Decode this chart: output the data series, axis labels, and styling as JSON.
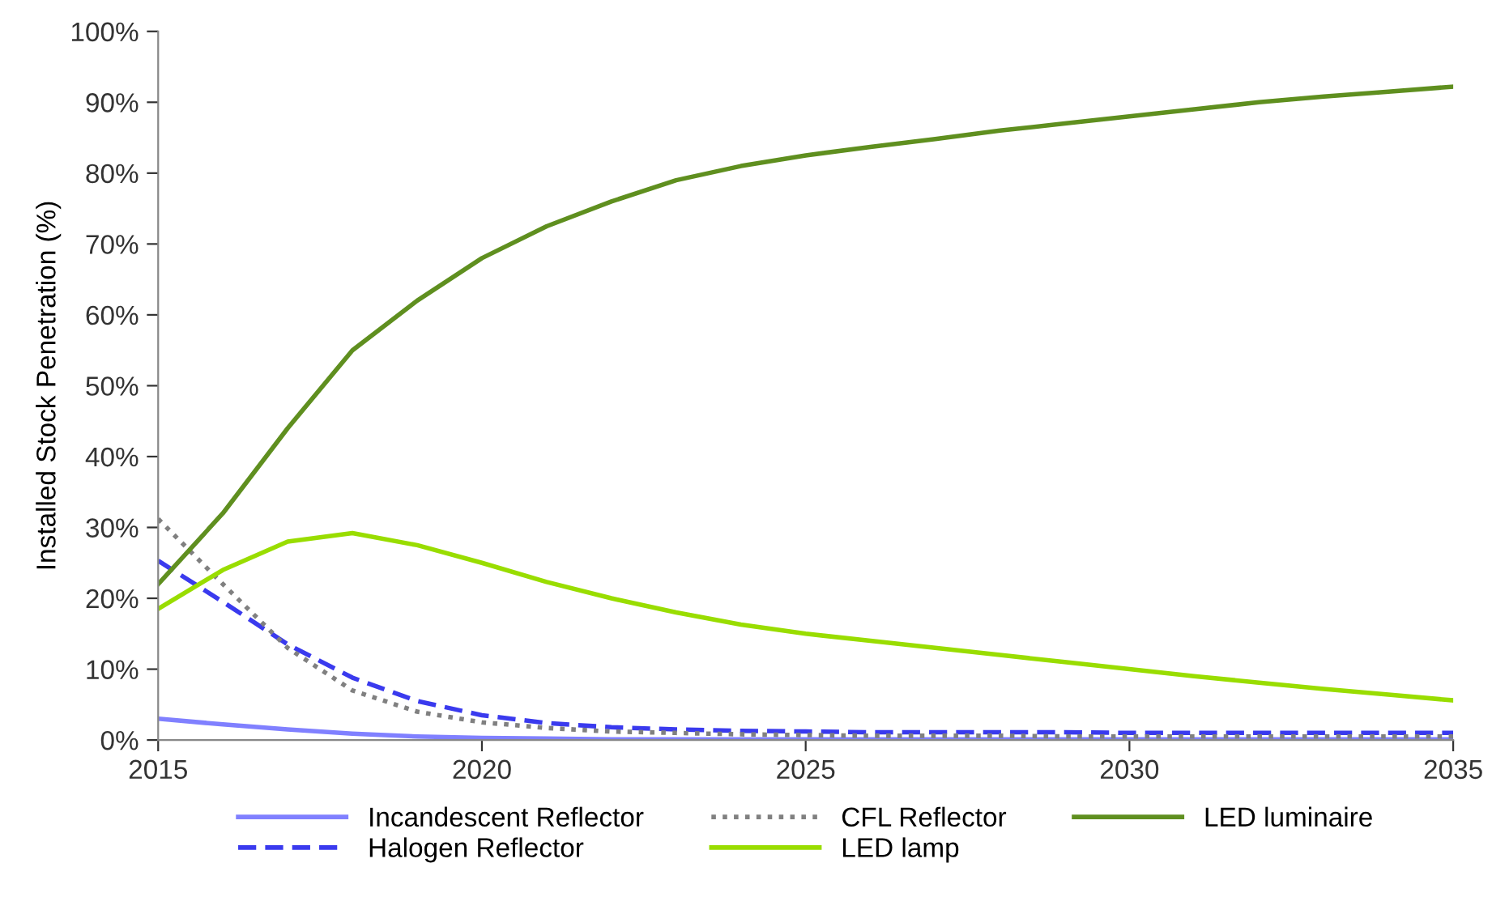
{
  "chart_data": {
    "type": "line",
    "ylabel": "Installed Stock Penetration (%)",
    "x": [
      2015,
      2016,
      2017,
      2018,
      2019,
      2020,
      2021,
      2022,
      2023,
      2024,
      2025,
      2026,
      2027,
      2028,
      2029,
      2030,
      2031,
      2032,
      2033,
      2034,
      2035
    ],
    "series": [
      {
        "name": "Incandescent Reflector",
        "color": "#8080ff",
        "line_style": "solid",
        "values": [
          3.0,
          2.2,
          1.5,
          0.9,
          0.5,
          0.3,
          0.2,
          0.1,
          0.1,
          0.1,
          0.1,
          0.1,
          0.1,
          0.1,
          0.1,
          0.1,
          0.1,
          0.1,
          0.1,
          0.1,
          0.1
        ]
      },
      {
        "name": "Halogen Reflector",
        "color": "#3a3aee",
        "line_style": "dashed",
        "values": [
          25.3,
          19.5,
          13.5,
          8.8,
          5.5,
          3.5,
          2.4,
          1.8,
          1.5,
          1.3,
          1.2,
          1.1,
          1.1,
          1.1,
          1.1,
          1.0,
          1.0,
          1.0,
          1.0,
          1.0,
          1.0
        ]
      },
      {
        "name": "CFL Reflector",
        "color": "#808080",
        "line_style": "dotted",
        "values": [
          31.2,
          22,
          13,
          7,
          4,
          2.5,
          1.7,
          1.2,
          1.0,
          0.8,
          0.7,
          0.6,
          0.6,
          0.6,
          0.5,
          0.5,
          0.5,
          0.5,
          0.5,
          0.5,
          0.5
        ]
      },
      {
        "name": "LED lamp",
        "color": "#99dd00",
        "line_style": "solid",
        "values": [
          18.5,
          24,
          28,
          29.2,
          27.5,
          25,
          22.3,
          20,
          18,
          16.3,
          15,
          14,
          13,
          12,
          11,
          10,
          9,
          8.1,
          7.2,
          6.4,
          5.6
        ]
      },
      {
        "name": "LED luminaire",
        "color": "#5f8f1f",
        "line_style": "solid",
        "values": [
          22,
          32,
          44,
          55,
          62,
          68,
          72.5,
          76,
          79,
          81,
          82.5,
          83.7,
          84.8,
          86,
          87,
          88,
          89,
          90,
          90.8,
          91.5,
          92.2
        ]
      }
    ],
    "xlim": [
      2015,
      2035
    ],
    "xticks": [
      2015,
      2020,
      2025,
      2030,
      2035
    ],
    "ylim": [
      0,
      100
    ],
    "yticks": [
      {
        "value": 0,
        "label": "0%"
      },
      {
        "value": 10,
        "label": "10%"
      },
      {
        "value": 20,
        "label": "20%"
      },
      {
        "value": 30,
        "label": "30%"
      },
      {
        "value": 40,
        "label": "40%"
      },
      {
        "value": 50,
        "label": "50%"
      },
      {
        "value": 60,
        "label": "60%"
      },
      {
        "value": 70,
        "label": "70%"
      },
      {
        "value": 80,
        "label": "80%"
      },
      {
        "value": 90,
        "label": "90%"
      },
      {
        "value": 100,
        "label": "100%"
      }
    ],
    "grid": false,
    "legend": "bottom",
    "marker": "none"
  }
}
